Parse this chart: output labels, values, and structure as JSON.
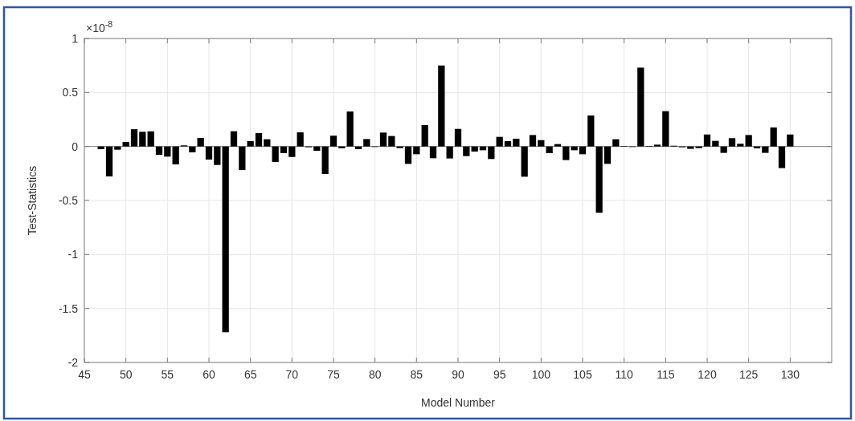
{
  "chart_data": {
    "type": "bar",
    "xlabel": "Model Number",
    "ylabel": "Test-Statistics",
    "annotations": [
      "×10$^{-8}$"
    ],
    "x": [
      47,
      48,
      49,
      50,
      51,
      52,
      53,
      54,
      55,
      56,
      57,
      58,
      59,
      60,
      61,
      62,
      63,
      64,
      65,
      66,
      67,
      68,
      69,
      70,
      71,
      72,
      73,
      74,
      75,
      76,
      77,
      78,
      79,
      80,
      81,
      82,
      83,
      84,
      85,
      86,
      87,
      88,
      89,
      90,
      91,
      92,
      93,
      94,
      95,
      96,
      97,
      98,
      99,
      100,
      101,
      102,
      103,
      104,
      105,
      106,
      107,
      108,
      109,
      110,
      111,
      112,
      113,
      114,
      115,
      116,
      117,
      118,
      119,
      120,
      121,
      122,
      123,
      124,
      125,
      126,
      127,
      128,
      129,
      130
    ],
    "values": [
      -0.025,
      -0.277,
      -0.03,
      0.042,
      0.16,
      0.136,
      0.14,
      -0.077,
      -0.094,
      -0.166,
      0.01,
      -0.054,
      0.079,
      -0.121,
      -0.171,
      -1.72,
      0.141,
      -0.218,
      0.05,
      0.124,
      0.067,
      -0.144,
      -0.062,
      -0.097,
      0.131,
      -0.007,
      -0.04,
      -0.255,
      0.1,
      -0.017,
      0.324,
      -0.025,
      0.069,
      0,
      0.129,
      0.097,
      -0.015,
      -0.161,
      -0.072,
      0.198,
      -0.109,
      0.75,
      -0.111,
      0.163,
      -0.089,
      -0.047,
      -0.035,
      -0.116,
      0.089,
      0.05,
      0.072,
      -0.28,
      0.106,
      0.059,
      -0.062,
      0.022,
      -0.126,
      -0.035,
      -0.072,
      0.287,
      -0.614,
      -0.161,
      0.067,
      0.003,
      0,
      0.73,
      0.005,
      0.017,
      0.327,
      0.007,
      -0.007,
      -0.022,
      -0.015,
      0.111,
      0.052,
      -0.059,
      0.077,
      0.025,
      0.106,
      -0.017,
      -0.059,
      0.176,
      -0.2,
      0.111
    ],
    "color": "#000000",
    "xlim": [
      45,
      135
    ],
    "xticks": [
      45,
      50,
      55,
      60,
      65,
      70,
      75,
      80,
      85,
      90,
      95,
      100,
      105,
      110,
      115,
      120,
      125,
      130
    ],
    "ylim": [
      -2,
      1
    ],
    "yticks": [
      -2,
      -1.5,
      -1,
      -0.5,
      0,
      0.5,
      1
    ],
    "grid": true
  }
}
